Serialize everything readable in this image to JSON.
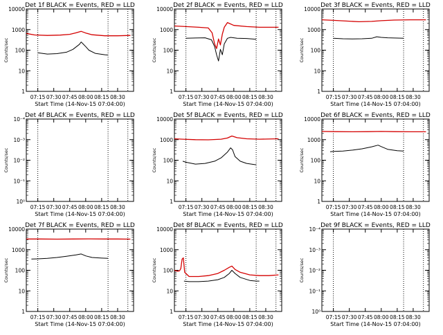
{
  "chart_data": [
    {
      "type": "line",
      "title": "Det 1f BLACK = Events, RED = LLD",
      "xlabel": "Start Time (14-Nov-15 07:04:00)",
      "ylabel": "Counts/sec",
      "y_scale": "log",
      "ylim": [
        1,
        10000
      ],
      "y_tick_labels": [
        "1",
        "10",
        "100",
        "1000",
        "10000"
      ],
      "xlim": [
        7.07,
        8.75
      ],
      "x_tick_labels": [
        "07:15",
        "07:30",
        "07:45",
        "08:00",
        "08:15",
        "08:30"
      ],
      "vlines": [
        7.25,
        8.35,
        8.66
      ],
      "series": [
        {
          "name": "Events",
          "color": "#000000",
          "x": [
            7.25,
            7.4,
            7.55,
            7.7,
            7.8,
            7.9,
            7.93,
            7.96,
            8.0,
            8.05,
            8.15,
            8.3,
            8.35
          ],
          "y": [
            75,
            65,
            68,
            80,
            110,
            190,
            250,
            200,
            150,
            100,
            70,
            60,
            58
          ]
        },
        {
          "name": "LLD",
          "color": "#d40000",
          "x": [
            7.07,
            7.2,
            7.4,
            7.6,
            7.75,
            7.85,
            7.93,
            8.0,
            8.1,
            8.3,
            8.5,
            8.7
          ],
          "y": [
            650,
            550,
            520,
            540,
            590,
            700,
            820,
            680,
            560,
            500,
            500,
            520
          ]
        }
      ]
    },
    {
      "type": "line",
      "title": "Det 2f BLACK = Events, RED = LLD",
      "xlabel": "Start Time (14-Nov-15 07:04:00)",
      "ylabel": "Counts/sec",
      "y_scale": "log",
      "ylim": [
        1,
        10000
      ],
      "y_tick_labels": [
        "1",
        "10",
        "100",
        "1000",
        "10000"
      ],
      "xlim": [
        7.07,
        8.75
      ],
      "x_tick_labels": [
        "07:15",
        "07:30",
        "07:45",
        "08:00",
        "08:15",
        "08:30"
      ],
      "vlines": [
        7.25,
        8.35,
        8.66
      ],
      "series": [
        {
          "name": "Events",
          "color": "#000000",
          "x": [
            7.25,
            7.4,
            7.55,
            7.65,
            7.7,
            7.73,
            7.76,
            7.79,
            7.82,
            7.85,
            7.9,
            7.95,
            8.05,
            8.2,
            8.35
          ],
          "y": [
            380,
            390,
            400,
            320,
            150,
            60,
            30,
            110,
            60,
            200,
            380,
            420,
            380,
            370,
            340
          ]
        },
        {
          "name": "LLD",
          "color": "#d40000",
          "x": [
            7.07,
            7.25,
            7.45,
            7.6,
            7.66,
            7.7,
            7.73,
            7.76,
            7.79,
            7.82,
            7.85,
            7.9,
            8.0,
            8.2,
            8.4,
            8.7
          ],
          "y": [
            1500,
            1400,
            1300,
            1200,
            700,
            200,
            120,
            350,
            180,
            600,
            1300,
            2200,
            1600,
            1400,
            1300,
            1300
          ]
        }
      ]
    },
    {
      "type": "line",
      "title": "Det 3f BLACK = Events, RED = LLD",
      "xlabel": "Start Time (14-Nov-15 07:04:00)",
      "ylabel": "Counts/sec",
      "y_scale": "log",
      "ylim": [
        1,
        10000
      ],
      "y_tick_labels": [
        "1",
        "10",
        "100",
        "1000",
        "10000"
      ],
      "xlim": [
        7.07,
        8.75
      ],
      "x_tick_labels": [
        "07:15",
        "07:30",
        "07:45",
        "08:00",
        "08:15",
        "08:30"
      ],
      "vlines": [
        7.25,
        8.35,
        8.66
      ],
      "series": [
        {
          "name": "Events",
          "color": "#000000",
          "x": [
            7.25,
            7.4,
            7.55,
            7.7,
            7.85,
            7.93,
            8.0,
            8.1,
            8.2,
            8.35
          ],
          "y": [
            380,
            360,
            350,
            360,
            380,
            450,
            420,
            400,
            390,
            380
          ]
        },
        {
          "name": "LLD",
          "color": "#d40000",
          "x": [
            7.07,
            7.25,
            7.45,
            7.65,
            7.85,
            8.0,
            8.2,
            8.45,
            8.7
          ],
          "y": [
            3000,
            2800,
            2600,
            2400,
            2500,
            2700,
            2900,
            3000,
            3000
          ]
        }
      ]
    },
    {
      "type": "line",
      "title": "Det 4f BLACK = Events, RED = LLD",
      "xlabel": "Start Time (14-Nov-15 07:04:00)",
      "ylabel": "Counts/sec",
      "y_scale": "log",
      "ylim": [
        1,
        0.0001
      ],
      "y_tick_labels": [
        "10⁰",
        "10⁻¹",
        "10⁻²",
        "10⁻³",
        "10⁻⁴"
      ],
      "xlim": [
        7.07,
        8.75
      ],
      "x_tick_labels": [
        "07:15",
        "07:30",
        "07:45",
        "08:00",
        "08:15",
        "08:30"
      ],
      "vlines": [
        7.25,
        8.35,
        8.66
      ],
      "series": []
    },
    {
      "type": "line",
      "title": "Det 5f BLACK = Events, RED = LLD",
      "xlabel": "Start Time (14-Nov-15 07:04:00)",
      "ylabel": "Counts/sec",
      "y_scale": "log",
      "ylim": [
        1,
        10000
      ],
      "y_tick_labels": [
        "1",
        "10",
        "100",
        "1000",
        "10000"
      ],
      "xlim": [
        7.07,
        8.75
      ],
      "x_tick_labels": [
        "07:15",
        "07:30",
        "07:45",
        "08:00",
        "08:15",
        "08:30"
      ],
      "vlines": [
        7.25,
        8.35,
        8.66
      ],
      "series": [
        {
          "name": "Events",
          "color": "#000000",
          "x": [
            7.2,
            7.25,
            7.4,
            7.55,
            7.7,
            7.8,
            7.9,
            7.95,
            7.98,
            8.02,
            8.1,
            8.2,
            8.35
          ],
          "y": [
            90,
            80,
            65,
            70,
            90,
            130,
            250,
            400,
            320,
            150,
            90,
            70,
            60
          ]
        },
        {
          "name": "LLD",
          "color": "#d40000",
          "x": [
            7.07,
            7.2,
            7.4,
            7.6,
            7.8,
            7.9,
            7.97,
            8.05,
            8.2,
            8.4,
            8.7
          ],
          "y": [
            1100,
            1050,
            1000,
            980,
            1050,
            1200,
            1500,
            1250,
            1100,
            1050,
            1100
          ]
        }
      ]
    },
    {
      "type": "line",
      "title": "Det 6f BLACK = Events, RED = LLD",
      "xlabel": "Start Time (14-Nov-15 07:04:00)",
      "ylabel": "Counts/sec",
      "y_scale": "log",
      "ylim": [
        1,
        10000
      ],
      "y_tick_labels": [
        "1",
        "10",
        "100",
        "1000",
        "10000"
      ],
      "xlim": [
        7.07,
        8.75
      ],
      "x_tick_labels": [
        "07:15",
        "07:30",
        "07:45",
        "08:00",
        "08:15",
        "08:30"
      ],
      "vlines": [
        7.25,
        8.35,
        8.66
      ],
      "series": [
        {
          "name": "Events",
          "color": "#000000",
          "x": [
            7.2,
            7.25,
            7.4,
            7.55,
            7.7,
            7.85,
            7.95,
            8.0,
            8.1,
            8.25,
            8.35
          ],
          "y": [
            260,
            270,
            280,
            310,
            360,
            450,
            540,
            460,
            340,
            290,
            280
          ]
        },
        {
          "name": "LLD",
          "color": "#d40000",
          "x": [
            7.07,
            7.3,
            7.55,
            7.8,
            8.0,
            8.2,
            8.45,
            8.7
          ],
          "y": [
            2500,
            2450,
            2400,
            2450,
            2500,
            2450,
            2400,
            2400
          ]
        }
      ]
    },
    {
      "type": "line",
      "title": "Det 7f BLACK = Events, RED = LLD",
      "xlabel": "Start Time (14-Nov-15 07:04:00)",
      "ylabel": "Counts/sec",
      "y_scale": "log",
      "ylim": [
        1,
        10000
      ],
      "y_tick_labels": [
        "1",
        "10",
        "100",
        "1000",
        "10000"
      ],
      "xlim": [
        7.07,
        8.75
      ],
      "x_tick_labels": [
        "07:15",
        "07:30",
        "07:45",
        "08:00",
        "08:15",
        "08:30"
      ],
      "vlines": [
        7.25,
        8.35,
        8.66
      ],
      "series": [
        {
          "name": "Events",
          "color": "#000000",
          "x": [
            7.15,
            7.25,
            7.4,
            7.55,
            7.7,
            7.85,
            7.93,
            8.0,
            8.1,
            8.25,
            8.35
          ],
          "y": [
            350,
            360,
            380,
            420,
            480,
            560,
            620,
            500,
            420,
            390,
            380
          ]
        },
        {
          "name": "LLD",
          "color": "#d40000",
          "x": [
            7.07,
            7.3,
            7.55,
            7.8,
            8.05,
            8.3,
            8.5,
            8.7
          ],
          "y": [
            3300,
            3300,
            3250,
            3300,
            3350,
            3300,
            3300,
            3250
          ]
        }
      ]
    },
    {
      "type": "line",
      "title": "Det 8f BLACK = Events, RED = LLD",
      "xlabel": "Start Time (14-Nov-15 07:04:00)",
      "ylabel": "Counts/sec",
      "y_scale": "log",
      "ylim": [
        1,
        10000
      ],
      "y_tick_labels": [
        "1",
        "10",
        "100",
        "1000",
        "10000"
      ],
      "xlim": [
        7.07,
        8.75
      ],
      "x_tick_labels": [
        "07:15",
        "07:30",
        "07:45",
        "08:00",
        "08:15",
        "08:30"
      ],
      "vlines": [
        7.25,
        8.35,
        8.66
      ],
      "series": [
        {
          "name": "Events",
          "color": "#000000",
          "x": [
            7.22,
            7.3,
            7.45,
            7.6,
            7.75,
            7.85,
            7.93,
            7.97,
            8.02,
            8.1,
            8.25,
            8.35,
            8.4
          ],
          "y": [
            30,
            28,
            28,
            30,
            35,
            45,
            70,
            100,
            70,
            45,
            32,
            30,
            30
          ]
        },
        {
          "name": "LLD",
          "color": "#d40000",
          "x": [
            7.07,
            7.12,
            7.15,
            7.17,
            7.19,
            7.21,
            7.23,
            7.3,
            7.45,
            7.6,
            7.75,
            7.85,
            7.93,
            7.97,
            8.02,
            8.1,
            8.25,
            8.4,
            8.55,
            8.7
          ],
          "y": [
            100,
            90,
            95,
            120,
            350,
            400,
            80,
            50,
            50,
            55,
            70,
            100,
            140,
            160,
            110,
            80,
            60,
            55,
            55,
            60
          ]
        }
      ]
    },
    {
      "type": "line",
      "title": "Det 9f BLACK = Events, RED = LLD",
      "xlabel": "Start Time (14-Nov-15 07:04:00)",
      "ylabel": "Counts/sec",
      "y_scale": "log",
      "ylim": [
        1,
        0.0001
      ],
      "y_tick_labels": [
        "10⁰",
        "10⁻¹",
        "10⁻²",
        "10⁻³",
        "10⁻⁴"
      ],
      "xlim": [
        7.07,
        8.75
      ],
      "x_tick_labels": [
        "07:15",
        "07:30",
        "07:45",
        "08:00",
        "08:15",
        "08:30"
      ],
      "vlines": [
        7.25,
        8.35,
        8.66
      ],
      "series": []
    }
  ]
}
